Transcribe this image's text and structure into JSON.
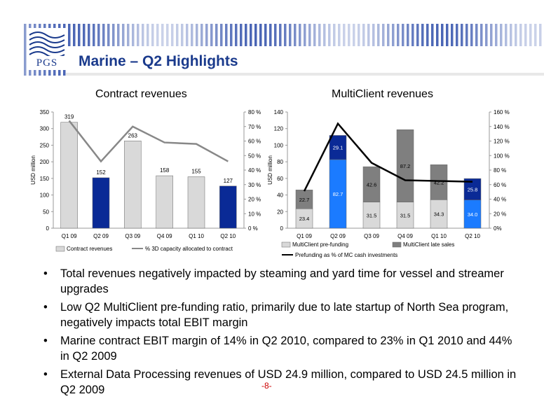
{
  "header": {
    "title": "Marine – Q2 Highlights",
    "logo_text": "PGS"
  },
  "chart_data": [
    {
      "type": "bar",
      "title": "Contract revenues",
      "ylabel": "USD million",
      "y2label": "",
      "ylim": [
        0,
        350
      ],
      "y2lim": [
        0,
        80
      ],
      "yticks": [
        "0",
        "50",
        "100",
        "150",
        "200",
        "250",
        "300",
        "350"
      ],
      "y2ticks": [
        "0 %",
        "10 %",
        "20 %",
        "30 %",
        "40 %",
        "50 %",
        "60 %",
        "70 %",
        "80 %"
      ],
      "categories": [
        "Q1 09",
        "Q2 09",
        "Q3 09",
        "Q4 09",
        "Q1 10",
        "Q2 10"
      ],
      "series": [
        {
          "name": "Contract revenues",
          "values": [
            319,
            152,
            263,
            158,
            155,
            127
          ],
          "labels": [
            "319",
            "152",
            "263",
            "158",
            "155",
            "127"
          ],
          "colors": [
            "#d9d9d9",
            "#0a2a96",
            "#d9d9d9",
            "#d9d9d9",
            "#d9d9d9",
            "#0a2a96"
          ]
        },
        {
          "name": "% 3D capacity allocated to contract",
          "type": "line",
          "axis": "y2",
          "values": [
            74,
            46,
            70,
            59,
            58,
            46
          ],
          "color": "#888888"
        }
      ],
      "legend": "bottom",
      "grid": false
    },
    {
      "type": "bar",
      "stacked": true,
      "title": "MultiClient revenues",
      "ylabel": "USD million",
      "ylim": [
        0,
        140
      ],
      "y2lim": [
        0,
        160
      ],
      "yticks": [
        "0",
        "20",
        "40",
        "60",
        "80",
        "100",
        "120",
        "140"
      ],
      "y2ticks": [
        "0%",
        "20 %",
        "40 %",
        "60 %",
        "80 %",
        "100 %",
        "120 %",
        "140 %",
        "160 %"
      ],
      "categories": [
        "Q1 09",
        "Q2 09",
        "Q3 09",
        "Q4 09",
        "Q1 10",
        "Q2 10"
      ],
      "series": [
        {
          "name": "MultiClient pre-funding",
          "values": [
            23.4,
            82.7,
            31.5,
            31.5,
            34.3,
            34.0
          ],
          "labels": [
            "23.4",
            "82.7",
            "31.5",
            "31.5",
            "34.3",
            "34.0"
          ],
          "colors": [
            "#d9d9d9",
            "#1b7bff",
            "#d9d9d9",
            "#d9d9d9",
            "#d9d9d9",
            "#1b7bff"
          ]
        },
        {
          "name": "MultiClient late sales",
          "values": [
            22.7,
            29.1,
            42.6,
            87.2,
            42.2,
            25.8
          ],
          "labels": [
            "22.7",
            "29.1",
            "42.6",
            "87.2",
            "42.2",
            "25.8"
          ],
          "colors": [
            "#7f7f7f",
            "#0a2a96",
            "#7f7f7f",
            "#7f7f7f",
            "#7f7f7f",
            "#0a2a96"
          ]
        },
        {
          "name": "Prefunding as % of MC cash investments",
          "type": "line",
          "axis": "y2",
          "values": [
            51,
            144,
            90,
            66,
            65,
            64
          ],
          "color": "#000000"
        }
      ],
      "legend": "bottom",
      "grid": false
    }
  ],
  "bullets": [
    "Total revenues negatively impacted by steaming and yard time for vessel and streamer upgrades",
    "Low Q2 MultiClient pre-funding ratio, primarily due to late startup of North Sea program, negatively impacts total EBIT margin",
    "Marine contract EBIT margin of 14% in Q2 2010, compared to 23% in Q1 2010 and 44% in Q2 2009",
    "External Data Processing revenues of USD 24.9 million, compared to USD 24.5 million in Q2 2009"
  ],
  "footer": {
    "page_number": "-8-"
  },
  "colors": {
    "title": "#1a3a8c",
    "banner": "#2a4aa8",
    "bar_light": "#d9d9d9",
    "bar_dark": "#0a2a96",
    "bar_bright": "#1b7bff",
    "bar_grey": "#7f7f7f"
  }
}
